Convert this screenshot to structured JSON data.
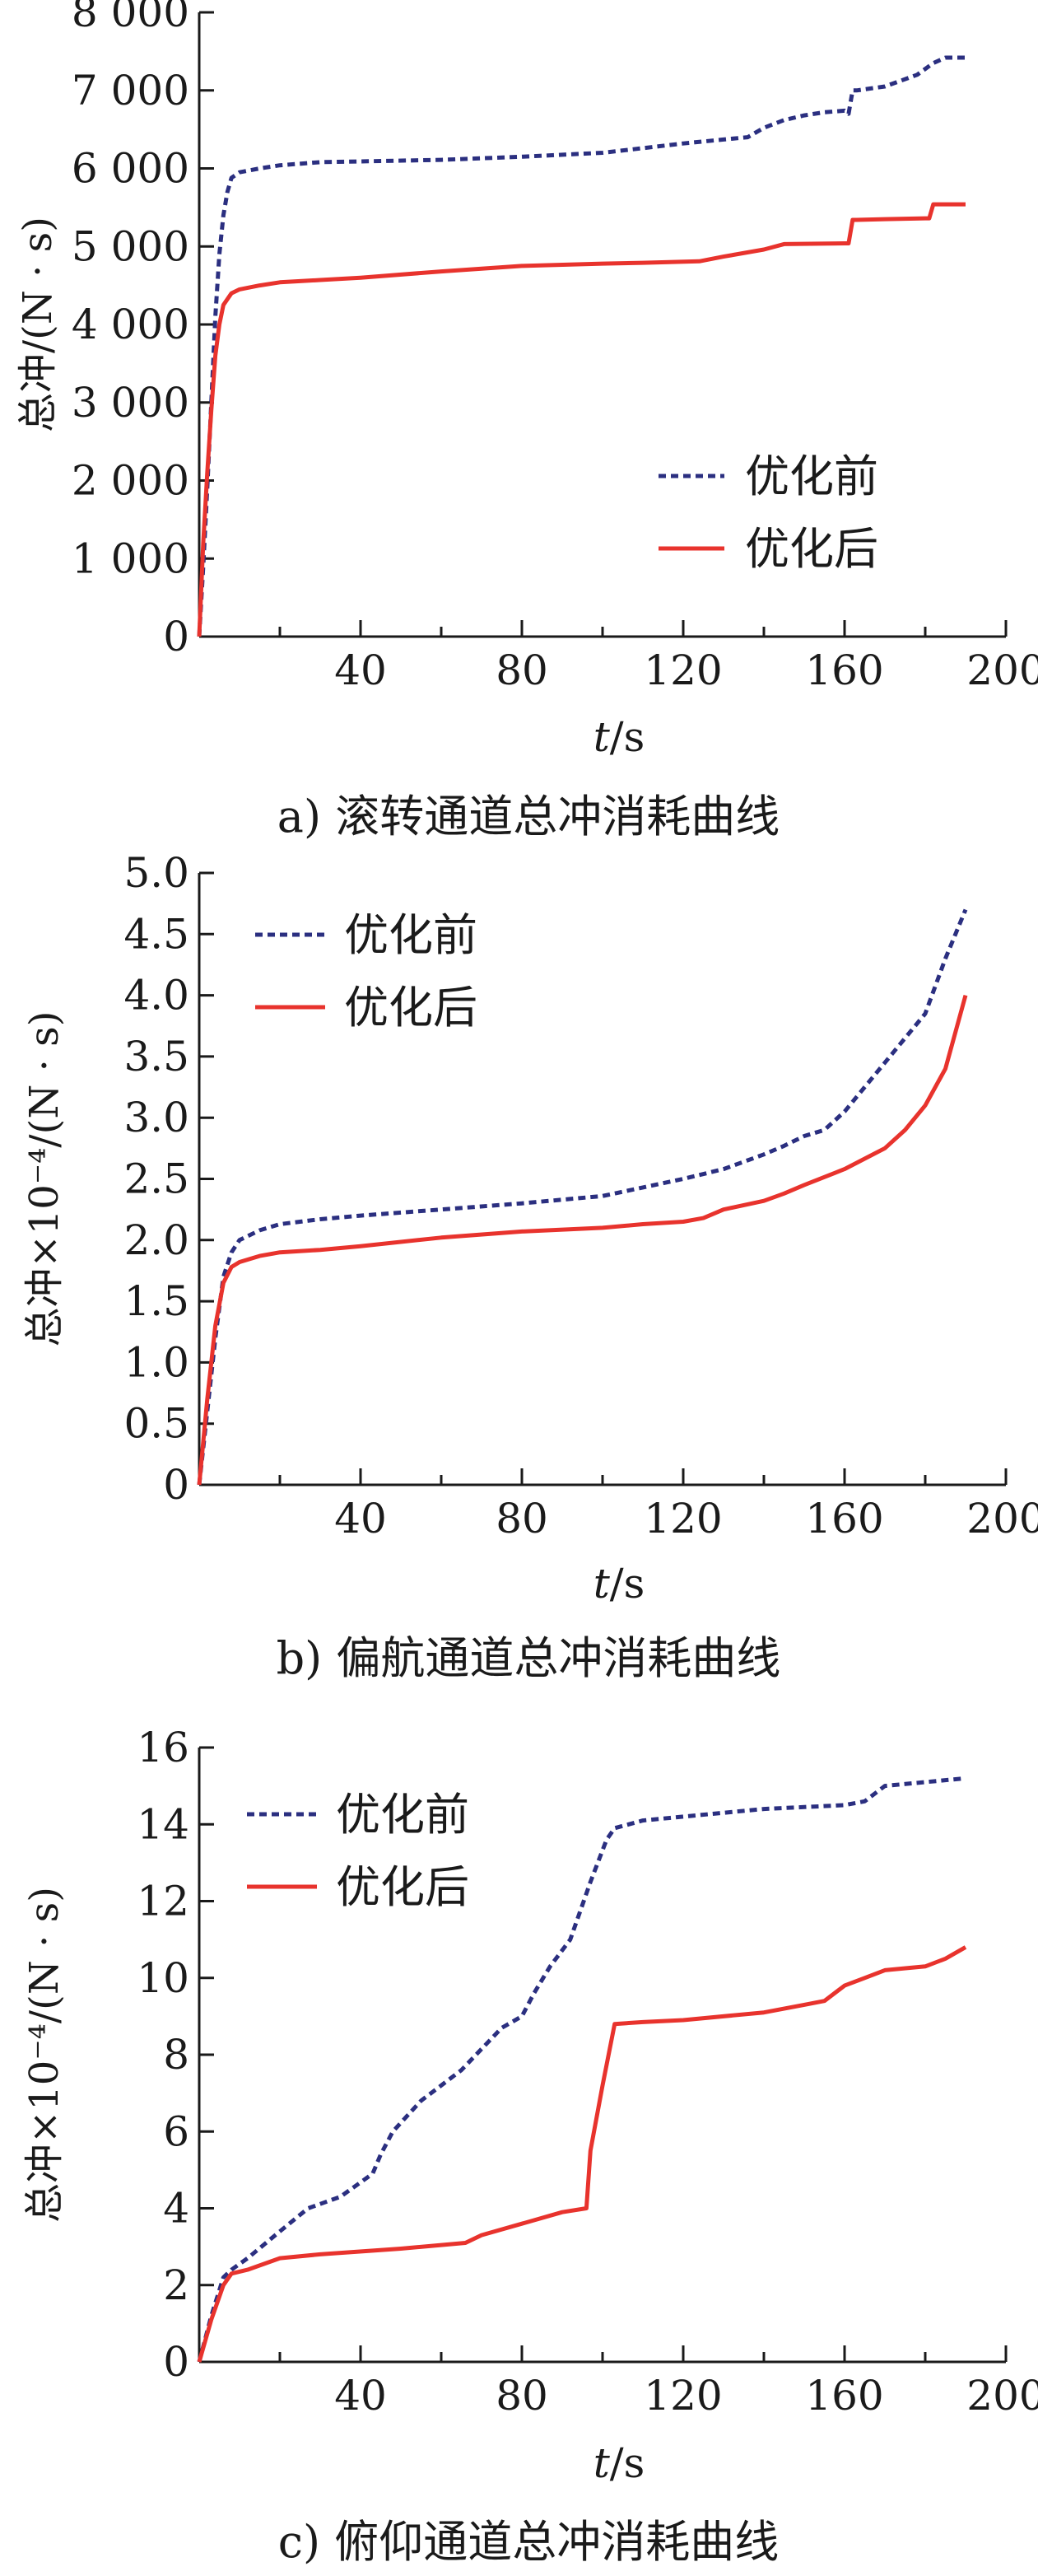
{
  "chart_data": [
    {
      "type": "line",
      "caption": "a) 滚转通道总冲消耗曲线",
      "xlabel_italic": "t",
      "xlabel_rest": "/s",
      "ylabel": "总冲/(N · s)",
      "xlim": [
        0,
        200
      ],
      "ylim": [
        0,
        8000
      ],
      "x_ticks": [
        40,
        80,
        120,
        160,
        200
      ],
      "x_tick_labels": [
        "40",
        "80",
        "120",
        "160",
        "200"
      ],
      "y_ticks": [
        0,
        1000,
        2000,
        3000,
        4000,
        5000,
        6000,
        7000,
        8000
      ],
      "y_tick_labels": [
        "0",
        "1 000",
        "2 000",
        "3 000",
        "4 000",
        "5 000",
        "6 000",
        "7 000",
        "8 000"
      ],
      "legend_position": "center-right",
      "series": [
        {
          "name": "优化前",
          "color": "#2b2f80",
          "dash": true,
          "x": [
            0,
            1,
            2,
            3,
            4,
            5,
            6,
            7,
            8,
            10,
            15,
            20,
            30,
            40,
            60,
            80,
            100,
            110,
            120,
            130,
            136,
            140,
            145,
            150,
            155,
            160,
            161,
            162,
            163,
            170,
            178,
            182,
            185,
            190
          ],
          "y": [
            0,
            900,
            1900,
            3000,
            4100,
            4900,
            5400,
            5700,
            5880,
            5950,
            6000,
            6040,
            6080,
            6090,
            6110,
            6150,
            6200,
            6260,
            6320,
            6370,
            6400,
            6520,
            6620,
            6680,
            6720,
            6740,
            6700,
            7000,
            7000,
            7050,
            7200,
            7350,
            7420,
            7420
          ]
        },
        {
          "name": "优化后",
          "color": "#e8332d",
          "dash": false,
          "x": [
            0,
            1,
            2,
            3,
            4,
            5,
            6,
            8,
            10,
            15,
            20,
            30,
            40,
            60,
            80,
            100,
            110,
            124,
            130,
            140,
            145,
            160,
            161,
            162,
            163,
            170,
            180,
            181,
            182,
            190
          ],
          "y": [
            0,
            1200,
            2100,
            2900,
            3600,
            4000,
            4250,
            4400,
            4450,
            4500,
            4540,
            4570,
            4600,
            4680,
            4750,
            4780,
            4790,
            4810,
            4870,
            4960,
            5030,
            5040,
            5040,
            5340,
            5340,
            5350,
            5360,
            5360,
            5540,
            5540
          ]
        }
      ]
    },
    {
      "type": "line",
      "caption": "b) 偏航通道总冲消耗曲线",
      "xlabel_italic": "t",
      "xlabel_rest": "/s",
      "ylabel": "总冲×10⁻⁴/(N · s)",
      "xlim": [
        0,
        200
      ],
      "ylim": [
        0,
        5
      ],
      "x_ticks": [
        40,
        80,
        120,
        160,
        200
      ],
      "x_tick_labels": [
        "40",
        "80",
        "120",
        "160",
        "200"
      ],
      "y_ticks": [
        0,
        0.5,
        1,
        1.5,
        2,
        2.5,
        3,
        3.5,
        4,
        4.5,
        5
      ],
      "y_tick_labels": [
        "0",
        "0.5",
        "1.0",
        "1.5",
        "2.0",
        "2.5",
        "3.0",
        "3.5",
        "4.0",
        "4.5",
        "5.0"
      ],
      "legend_position": "top-left",
      "series": [
        {
          "name": "优化前",
          "color": "#2b2f80",
          "dash": true,
          "x": [
            0,
            2,
            4,
            6,
            8,
            10,
            15,
            20,
            30,
            40,
            60,
            80,
            100,
            110,
            120,
            130,
            140,
            145,
            150,
            155,
            160,
            165,
            170,
            175,
            180,
            185,
            190
          ],
          "y": [
            0,
            0.6,
            1.2,
            1.7,
            1.9,
            2.0,
            2.08,
            2.13,
            2.17,
            2.2,
            2.25,
            2.3,
            2.36,
            2.43,
            2.5,
            2.58,
            2.7,
            2.77,
            2.85,
            2.9,
            3.05,
            3.25,
            3.45,
            3.65,
            3.85,
            4.3,
            4.7
          ]
        },
        {
          "name": "优化后",
          "color": "#e8332d",
          "dash": false,
          "x": [
            0,
            2,
            4,
            6,
            8,
            10,
            15,
            20,
            30,
            40,
            60,
            80,
            100,
            110,
            120,
            125,
            130,
            140,
            145,
            150,
            160,
            170,
            175,
            180,
            185,
            190
          ],
          "y": [
            0,
            0.7,
            1.3,
            1.65,
            1.78,
            1.82,
            1.87,
            1.9,
            1.92,
            1.95,
            2.02,
            2.07,
            2.1,
            2.13,
            2.15,
            2.18,
            2.25,
            2.32,
            2.38,
            2.45,
            2.58,
            2.75,
            2.9,
            3.1,
            3.4,
            4.0
          ]
        }
      ]
    },
    {
      "type": "line",
      "caption": "c) 俯仰通道总冲消耗曲线",
      "xlabel_italic": "t",
      "xlabel_rest": "/s",
      "ylabel": "总冲×10⁻⁴/(N · s)",
      "xlim": [
        0,
        200
      ],
      "ylim": [
        0,
        16
      ],
      "x_ticks": [
        40,
        80,
        120,
        160,
        200
      ],
      "x_tick_labels": [
        "40",
        "80",
        "120",
        "160",
        "200"
      ],
      "y_ticks": [
        0,
        2,
        4,
        6,
        8,
        10,
        12,
        14,
        16
      ],
      "y_tick_labels": [
        "0",
        "2",
        "4",
        "6",
        "8",
        "10",
        "12",
        "14",
        "16"
      ],
      "legend_position": "top-left",
      "series": [
        {
          "name": "优化前",
          "color": "#2b2f80",
          "dash": true,
          "x": [
            0,
            3,
            6,
            8,
            12,
            20,
            27,
            35,
            43,
            45,
            48,
            55,
            65,
            75,
            80,
            83,
            87,
            92,
            97,
            101,
            103,
            110,
            120,
            140,
            150,
            160,
            165,
            170,
            180,
            190
          ],
          "y": [
            0,
            1.2,
            2.2,
            2.4,
            2.7,
            3.4,
            4.0,
            4.3,
            4.9,
            5.4,
            6.0,
            6.8,
            7.6,
            8.7,
            9.0,
            9.6,
            10.3,
            11.0,
            12.5,
            13.6,
            13.9,
            14.1,
            14.2,
            14.4,
            14.45,
            14.5,
            14.6,
            15.0,
            15.1,
            15.2
          ]
        },
        {
          "name": "优化后",
          "color": "#e8332d",
          "dash": false,
          "x": [
            0,
            3,
            6,
            8,
            12,
            20,
            30,
            50,
            66,
            70,
            80,
            90,
            96,
            97,
            100,
            103,
            110,
            120,
            140,
            150,
            155,
            160,
            165,
            170,
            180,
            185,
            190
          ],
          "y": [
            0,
            1.1,
            2.0,
            2.3,
            2.4,
            2.7,
            2.8,
            2.95,
            3.1,
            3.3,
            3.6,
            3.9,
            4.0,
            5.5,
            7.2,
            8.8,
            8.85,
            8.9,
            9.1,
            9.3,
            9.4,
            9.8,
            10.0,
            10.2,
            10.3,
            10.5,
            10.8
          ]
        }
      ]
    }
  ]
}
